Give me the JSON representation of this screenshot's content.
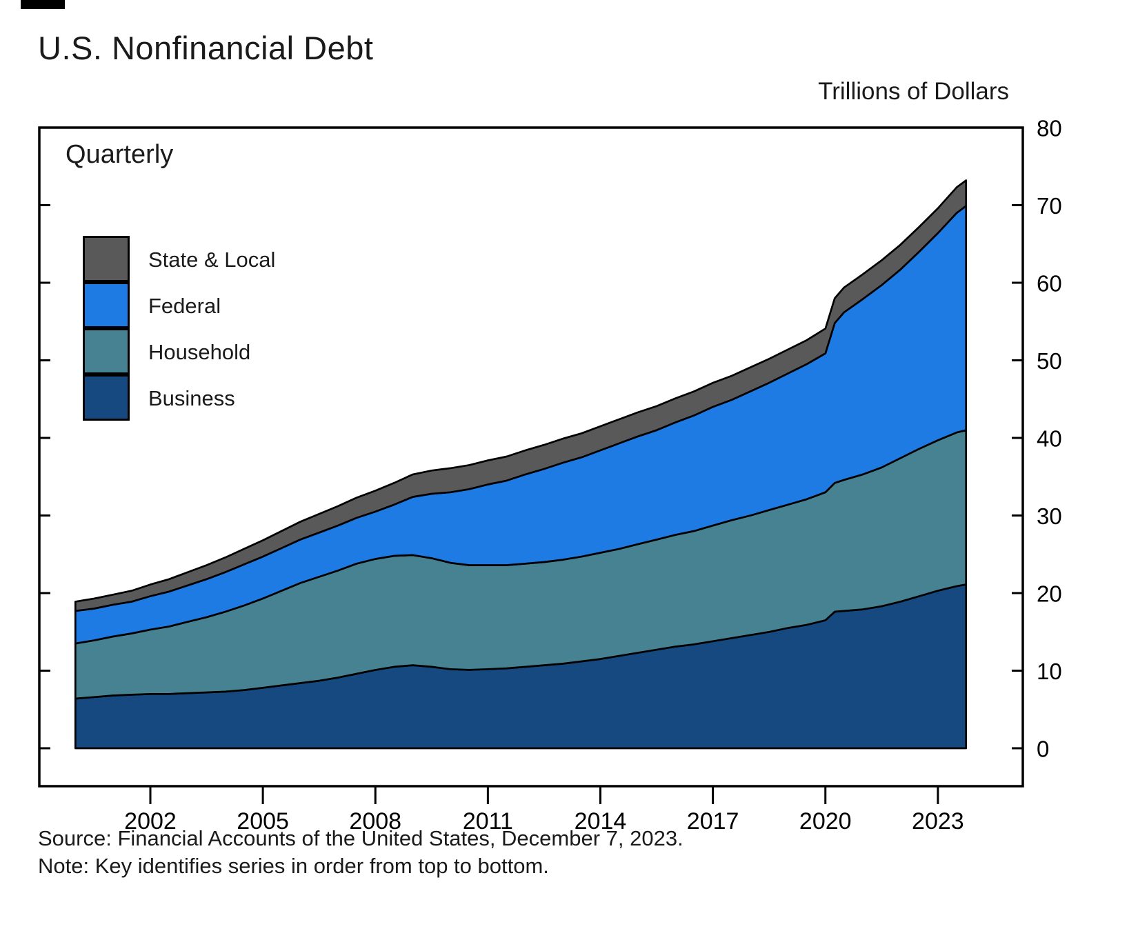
{
  "page": {
    "title": "U.S. Nonfinancial Debt",
    "units_label": "Trillions of Dollars",
    "frequency_label": "Quarterly",
    "source": "Source: Financial Accounts of the United States, December 7, 2023.",
    "note": "Note: Key identifies series in order from top to bottom."
  },
  "chart_data": {
    "type": "area",
    "stacked": true,
    "title": "U.S. Nonfinancial Debt",
    "subtitle": "Quarterly",
    "units": "Trillions of Dollars",
    "xlabel": "",
    "ylabel": "Trillions of Dollars",
    "ylim": [
      0,
      80
    ],
    "xlim": [
      2000,
      2024
    ],
    "grid": false,
    "legend_position": "top-left",
    "series_order": "key listed top to bottom of stack",
    "y_ticks": [
      0,
      10,
      20,
      30,
      40,
      50,
      60,
      70,
      80
    ],
    "x_ticks": [
      2002,
      2005,
      2008,
      2011,
      2014,
      2017,
      2020,
      2023
    ],
    "x": [
      2000,
      2000.5,
      2001,
      2001.5,
      2002,
      2002.5,
      2003,
      2003.5,
      2004,
      2004.5,
      2005,
      2005.5,
      2006,
      2006.5,
      2007,
      2007.5,
      2008,
      2008.5,
      2009,
      2009.5,
      2010,
      2010.5,
      2011,
      2011.5,
      2012,
      2012.5,
      2013,
      2013.5,
      2014,
      2014.5,
      2015,
      2015.5,
      2016,
      2016.5,
      2017,
      2017.5,
      2018,
      2018.5,
      2019,
      2019.5,
      2020,
      2020.25,
      2020.5,
      2021,
      2021.5,
      2022,
      2022.5,
      2023,
      2023.5,
      2023.75
    ],
    "series": [
      {
        "name": "State & Local",
        "color": "#595959",
        "values": [
          1.2,
          1.3,
          1.3,
          1.4,
          1.5,
          1.6,
          1.7,
          1.8,
          1.9,
          2.0,
          2.1,
          2.2,
          2.3,
          2.4,
          2.5,
          2.6,
          2.7,
          2.8,
          2.9,
          3.0,
          3.1,
          3.1,
          3.1,
          3.1,
          3.1,
          3.1,
          3.1,
          3.1,
          3.1,
          3.1,
          3.1,
          3.1,
          3.1,
          3.1,
          3.1,
          3.1,
          3.1,
          3.1,
          3.1,
          3.1,
          3.2,
          3.2,
          3.2,
          3.2,
          3.2,
          3.2,
          3.2,
          3.2,
          3.3,
          3.3
        ]
      },
      {
        "name": "Federal",
        "color": "#1f7be4",
        "values": [
          4.2,
          4.1,
          4.1,
          4.1,
          4.3,
          4.5,
          4.7,
          4.9,
          5.1,
          5.3,
          5.4,
          5.5,
          5.6,
          5.7,
          5.8,
          5.9,
          6.1,
          6.6,
          7.5,
          8.3,
          9.1,
          9.8,
          10.4,
          10.9,
          11.5,
          12.0,
          12.5,
          12.8,
          13.2,
          13.6,
          13.9,
          14.1,
          14.5,
          14.9,
          15.3,
          15.5,
          16.0,
          16.4,
          16.9,
          17.4,
          17.9,
          20.6,
          21.6,
          22.6,
          23.5,
          24.3,
          25.4,
          26.7,
          28.3,
          28.9
        ]
      },
      {
        "name": "Household",
        "color": "#468291",
        "values": [
          7.1,
          7.3,
          7.6,
          7.9,
          8.3,
          8.7,
          9.2,
          9.7,
          10.3,
          10.9,
          11.5,
          12.2,
          12.9,
          13.4,
          13.8,
          14.2,
          14.3,
          14.3,
          14.2,
          14.0,
          13.7,
          13.5,
          13.4,
          13.3,
          13.3,
          13.3,
          13.4,
          13.5,
          13.7,
          13.8,
          14.0,
          14.2,
          14.4,
          14.6,
          14.9,
          15.2,
          15.4,
          15.7,
          15.9,
          16.2,
          16.5,
          16.6,
          16.9,
          17.4,
          17.9,
          18.5,
          19.0,
          19.4,
          19.8,
          19.9
        ]
      },
      {
        "name": "Business",
        "color": "#15497f",
        "values": [
          6.4,
          6.6,
          6.8,
          6.9,
          7.0,
          7.0,
          7.1,
          7.2,
          7.3,
          7.5,
          7.8,
          8.1,
          8.4,
          8.7,
          9.1,
          9.6,
          10.1,
          10.5,
          10.7,
          10.5,
          10.2,
          10.1,
          10.2,
          10.3,
          10.5,
          10.7,
          10.9,
          11.2,
          11.5,
          11.9,
          12.3,
          12.7,
          13.1,
          13.4,
          13.8,
          14.2,
          14.6,
          15.0,
          15.5,
          15.9,
          16.5,
          17.6,
          17.7,
          17.9,
          18.3,
          18.9,
          19.6,
          20.3,
          20.9,
          21.1
        ]
      }
    ]
  }
}
